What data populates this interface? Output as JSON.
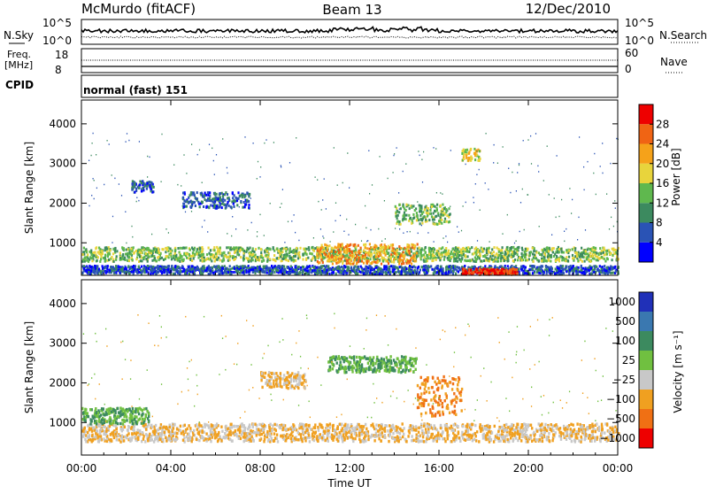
{
  "header": {
    "station": "McMurdo (fitACF)",
    "beam": "Beam 13",
    "date": "12/Dec/2010"
  },
  "noise_panel": {
    "left_label": "N.Sky",
    "right_label": "N.Search",
    "left_ticks": [
      "10^5",
      "10^0"
    ],
    "right_ticks": [
      "10^5",
      "10^0"
    ]
  },
  "freq_panel": {
    "left_label_line1": "Freq.",
    "left_label_line2": "[MHz]",
    "left_ticks": [
      "18",
      "8"
    ],
    "right_label": "Nave",
    "right_ticks": [
      "60",
      "0"
    ]
  },
  "cpid": {
    "label": "CPID",
    "mode_text": "normal (fast) 151"
  },
  "chart_data": [
    {
      "type": "heatmap",
      "title": "",
      "ylabel": "Slant Range [km]",
      "xlabel": "",
      "x_ticks": [
        "00:00",
        "04:00",
        "08:00",
        "12:00",
        "16:00",
        "20:00",
        "00:00"
      ],
      "x_range_hours": [
        0,
        24
      ],
      "y_ticks": [
        1000,
        2000,
        3000,
        4000
      ],
      "ylim": [
        180,
        4600
      ],
      "colorbar": {
        "label": "Power [dB]",
        "ticks": [
          4,
          8,
          12,
          16,
          20,
          24,
          28
        ],
        "range": [
          0,
          32
        ],
        "colors": [
          "#0000ff",
          "#2a53b5",
          "#3c8a5f",
          "#5fb84e",
          "#e8d43c",
          "#f5a21a",
          "#f06414",
          "#ee0000"
        ]
      },
      "bands": [
        {
          "t": [
            0,
            24
          ],
          "range_km": [
            560,
            920
          ],
          "value": 14
        },
        {
          "t": [
            0,
            24
          ],
          "range_km": [
            250,
            450
          ],
          "value": 6
        },
        {
          "t": [
            10.5,
            15
          ],
          "range_km": [
            500,
            1000
          ],
          "value": 22
        },
        {
          "t": [
            17,
            19.5
          ],
          "range_km": [
            230,
            380
          ],
          "value": 29
        },
        {
          "t": [
            2.2,
            3.2
          ],
          "range_km": [
            2300,
            2600
          ],
          "value": 6
        },
        {
          "t": [
            4.5,
            7.5
          ],
          "range_km": [
            1900,
            2300
          ],
          "value": 7
        },
        {
          "t": [
            14,
            16.5
          ],
          "range_km": [
            1500,
            2000
          ],
          "value": 13
        },
        {
          "t": [
            17,
            17.8
          ],
          "range_km": [
            3100,
            3400
          ],
          "value": 18
        }
      ]
    },
    {
      "type": "heatmap",
      "title": "",
      "ylabel": "Slant Range [km]",
      "xlabel": "Time UT",
      "x_ticks": [
        "00:00",
        "04:00",
        "08:00",
        "12:00",
        "16:00",
        "20:00",
        "00:00"
      ],
      "x_range_hours": [
        0,
        24
      ],
      "y_ticks": [
        1000,
        2000,
        3000,
        4000
      ],
      "ylim": [
        180,
        4600
      ],
      "colorbar": {
        "label": "Velocity [m s⁻¹]",
        "ticks": [
          "1000",
          "500",
          "100",
          "25",
          "−25",
          "−100",
          "−500",
          "−1000"
        ],
        "colors": [
          "#2030b8",
          "#3a78b0",
          "#3c8a5f",
          "#70c040",
          "#c8c8c8",
          "#f0a020",
          "#f07014",
          "#ee0000"
        ]
      },
      "bands": [
        {
          "t": [
            0,
            24
          ],
          "range_km": [
            550,
            1000
          ],
          "value": -100
        },
        {
          "t": [
            0,
            3
          ],
          "range_km": [
            1000,
            1400
          ],
          "value": 25
        },
        {
          "t": [
            11,
            15
          ],
          "range_km": [
            2300,
            2700
          ],
          "value": 25
        },
        {
          "t": [
            15,
            17
          ],
          "range_km": [
            1200,
            2200
          ],
          "value": -500
        },
        {
          "t": [
            8,
            10
          ],
          "range_km": [
            1900,
            2300
          ],
          "value": -100
        }
      ]
    }
  ]
}
